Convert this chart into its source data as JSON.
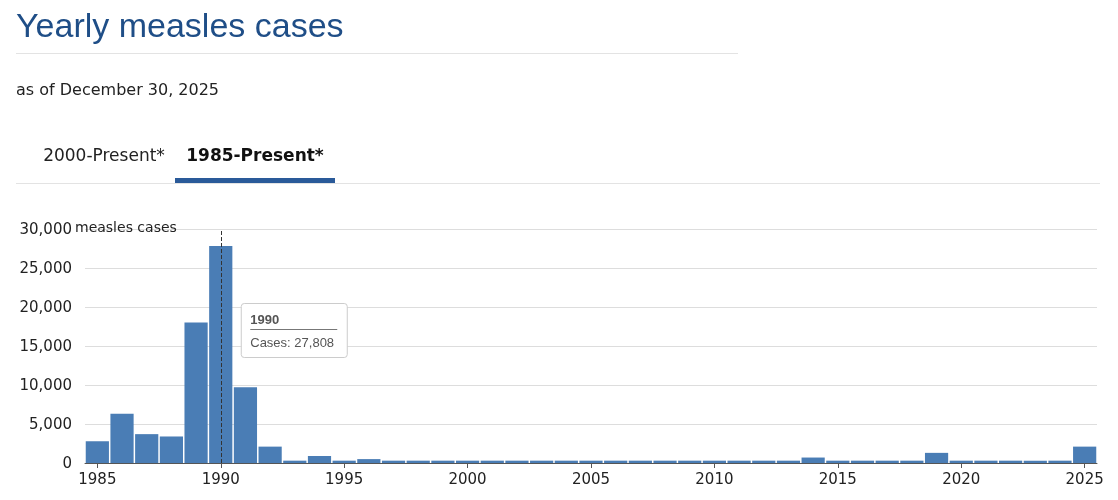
{
  "chart_data": {
    "type": "bar",
    "title": "Yearly measles cases",
    "subtitle": "as of December 30, 2025",
    "categories": [
      "1985",
      null,
      null,
      null,
      null,
      "1990",
      null,
      null,
      null,
      null,
      "1995",
      null,
      null,
      null,
      null,
      "2000",
      null,
      null,
      null,
      null,
      "2005",
      null,
      null,
      null,
      null,
      "2010",
      null,
      null,
      null,
      null,
      "2015",
      null,
      null,
      null,
      null,
      "2020",
      null,
      null,
      null,
      null,
      "2025"
    ],
    "values": [
      2800,
      6300,
      3700,
      3400,
      18000,
      27808,
      9700,
      2100,
      300,
      900,
      300,
      500,
      300,
      300,
      300,
      300,
      300,
      300,
      300,
      300,
      300,
      300,
      300,
      300,
      300,
      300,
      300,
      300,
      300,
      700,
      300,
      300,
      300,
      300,
      1300,
      300,
      300,
      300,
      300,
      300,
      2100
    ],
    "color": "#4a7db5",
    "ylim": [
      0,
      30000
    ],
    "yticks": [
      {
        "value": 0,
        "label": "0"
      },
      {
        "value": 5000,
        "label": "5,000"
      },
      {
        "value": 10000,
        "label": "10,000"
      },
      {
        "value": 15000,
        "label": "15,000"
      },
      {
        "value": 20000,
        "label": "20,000"
      },
      {
        "value": 25000,
        "label": "25,000"
      },
      {
        "value": 30000,
        "label": "30,000"
      }
    ],
    "ylabel": "measles cases",
    "grid": "y",
    "ref_lines": [
      {
        "axis": "x",
        "value": "1990",
        "line_style": "dashed",
        "color": "#333333"
      }
    ],
    "annotations": [
      "2000-Present*",
      "1985-Present*",
      "1990",
      "Cases: 27,808"
    ]
  }
}
